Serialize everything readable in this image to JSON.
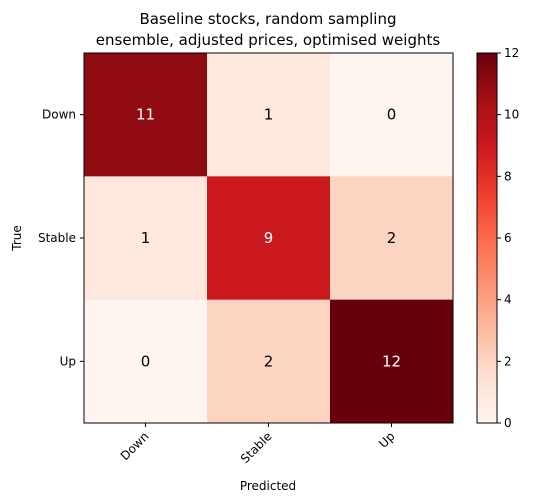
{
  "chart_data": {
    "type": "heatmap",
    "title_line1": "Baseline stocks, random sampling",
    "title_line2": "ensemble, adjusted prices, optimised weights",
    "xlabel": "Predicted",
    "ylabel": "True",
    "x_categories": [
      "Down",
      "Stable",
      "Up"
    ],
    "y_categories": [
      "Down",
      "Stable",
      "Up"
    ],
    "values": [
      [
        11,
        1,
        0
      ],
      [
        1,
        9,
        2
      ],
      [
        0,
        2,
        12
      ]
    ],
    "colormap": "Reds",
    "vmin": 0,
    "vmax": 12,
    "colorbar_ticks": [
      "0",
      "2",
      "4",
      "6",
      "8",
      "10",
      "12"
    ]
  }
}
